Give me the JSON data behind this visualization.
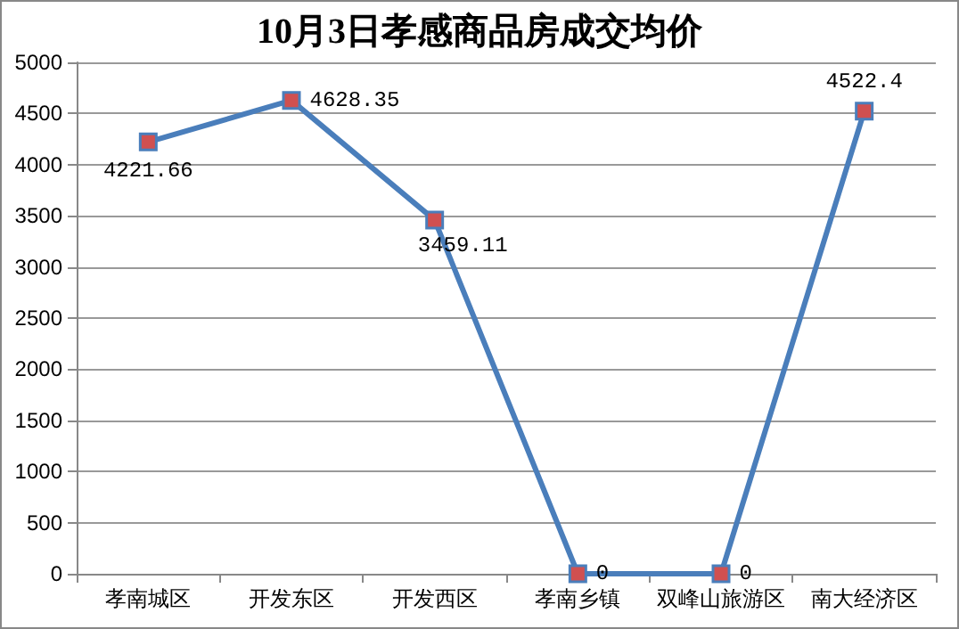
{
  "chart_data": {
    "type": "line",
    "title": "10月3日孝感商品房成交均价",
    "categories": [
      "孝南城区",
      "开发东区",
      "开发西区",
      "孝南乡镇",
      "双峰山旅游区",
      "南大经济区"
    ],
    "series": [
      {
        "color": "#4a7ebb",
        "values": [
          4221.66,
          4628.35,
          3459.11,
          0,
          0,
          4522.4
        ]
      }
    ],
    "ylim": [
      0,
      5000
    ],
    "yticks": [
      0,
      500,
      1000,
      1500,
      2000,
      2500,
      3000,
      3500,
      4000,
      4500,
      5000
    ],
    "grid": "y",
    "marker": "square",
    "line_style": "solid",
    "data_labels": true
  }
}
